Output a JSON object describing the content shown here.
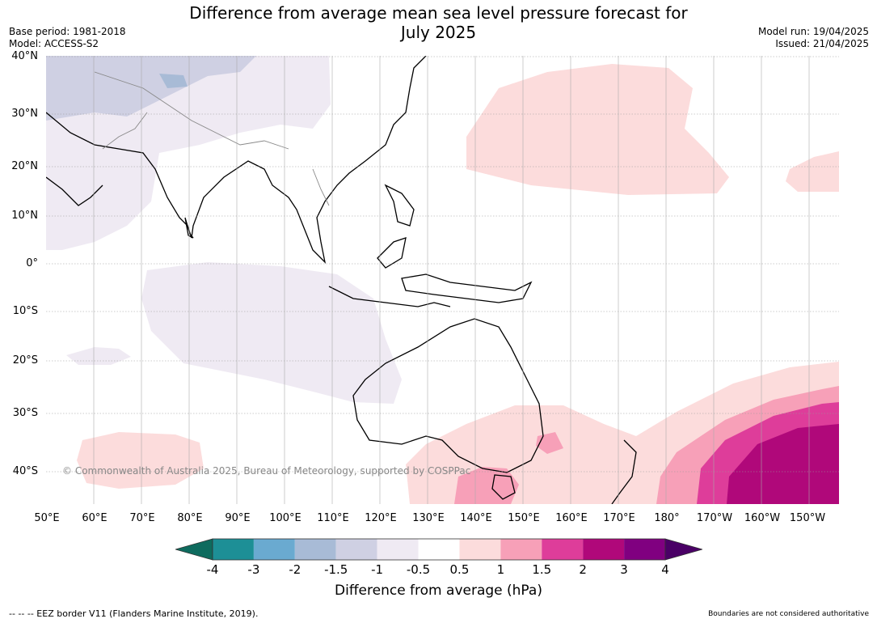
{
  "title_line1": "Difference from average mean sea level pressure forecast for",
  "title_line2": "July 2025",
  "base_period": "Base period: 1981-2018",
  "model": "Model: ACCESS-S2",
  "model_run": "Model run: 19/04/2025",
  "issued": "Issued: 21/04/2025",
  "lat_labels": [
    "40°N",
    "30°N",
    "20°N",
    "10°N",
    "0°",
    "10°S",
    "20°S",
    "30°S",
    "40°S"
  ],
  "lon_labels": [
    "50°E",
    "60°E",
    "70°E",
    "80°E",
    "90°E",
    "100°E",
    "110°E",
    "120°E",
    "130°E",
    "140°E",
    "150°E",
    "160°E",
    "170°E",
    "180°",
    "170°W",
    "160°W",
    "150°W"
  ],
  "copyright": "© Commonwealth of Australia 2025, Bureau of Meteorology, supported by COSPPac",
  "colorbar": {
    "labels": [
      "-4",
      "-3",
      "-2",
      "-1.5",
      "-1",
      "-0.5",
      "0.5",
      "1",
      "1.5",
      "2",
      "3",
      "4"
    ],
    "colors": [
      "#0e6b5e",
      "#1d8f96",
      "#6aaad0",
      "#a8bbd6",
      "#cfd0e3",
      "#efeaf3",
      "#ffffff",
      "#fcdcdc",
      "#f7a0b8",
      "#de3d9a",
      "#b0087a",
      "#800080",
      "#4a0066"
    ],
    "title": "Difference from average (hPa)"
  },
  "footer_left": "--  --  -- EEZ border V11 (Flanders Marine Institute, 2019).",
  "footer_right": "Boundaries are not considered authoritative"
}
